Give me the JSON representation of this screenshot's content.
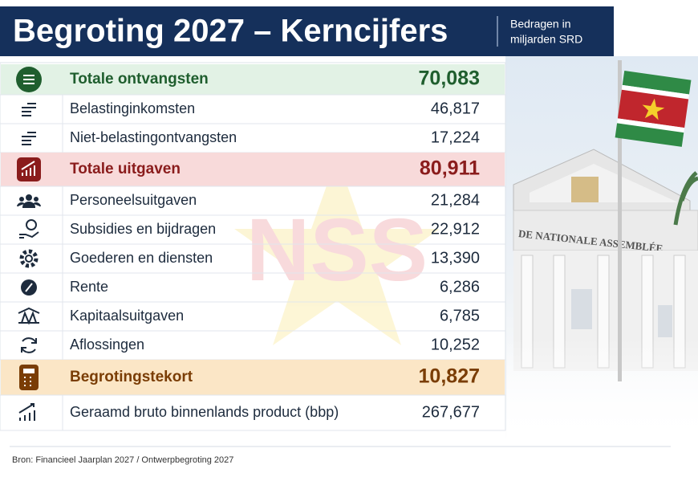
{
  "header": {
    "title": "Begroting 2027 – Kerncijfers",
    "note": [
      "Bedragen in",
      "miljarden SRD"
    ]
  },
  "table": {
    "rows": [
      [
        "Totale ontvangsten",
        "70,083"
      ],
      [
        "Belastinginkomsten",
        "46,817"
      ],
      [
        "Niet-belastingontvangsten",
        "17,224"
      ],
      [
        "Totale uitgaven",
        "80,911"
      ],
      [
        "Personeelsuitgaven",
        "21,284"
      ],
      [
        "Subsidies en bijdragen",
        "22,912"
      ],
      [
        "Goederen en diensten",
        "13,390"
      ],
      [
        "Rente",
        "6,286"
      ],
      [
        "Kapitaalsuitgaven",
        "6,785"
      ],
      [
        "Aflossingen",
        "10,252"
      ],
      [
        "Begrotingstekort",
        "10,827"
      ],
      [
        "Geraamd bruto binnenlands product (bbp)",
        "267,677"
      ]
    ]
  },
  "watermark": "NSS",
  "building_sign": "DE NATIONALE ASSEMBLÉE",
  "footer": {
    "source": "Bron: Financieel Jaarplan 2027 / Ontwerpbegroting 2027"
  }
}
